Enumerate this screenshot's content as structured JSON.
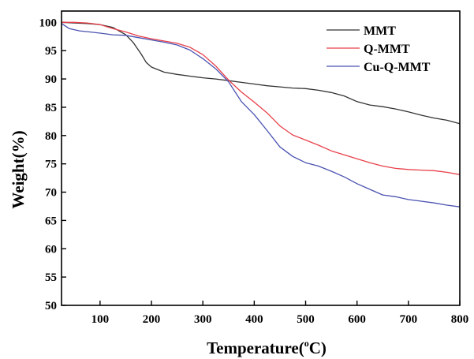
{
  "chart_data": {
    "type": "line",
    "title": "",
    "xlabel": "Temperature(",
    "xlabel_sup": "o",
    "xlabel_unit": "C)",
    "ylabel": "Weight(%)",
    "xlim": [
      25,
      800
    ],
    "ylim": [
      50,
      102
    ],
    "xticks": [
      100,
      200,
      300,
      400,
      500,
      600,
      700,
      800
    ],
    "yticks": [
      50,
      55,
      60,
      65,
      70,
      75,
      80,
      85,
      90,
      95,
      100
    ],
    "grid": false,
    "legend_position": "top-right",
    "series": [
      {
        "name": "MMT",
        "color": "#333333",
        "x": [
          25,
          50,
          75,
          100,
          125,
          150,
          165,
          180,
          190,
          200,
          225,
          250,
          275,
          300,
          325,
          350,
          375,
          400,
          425,
          450,
          475,
          500,
          525,
          550,
          575,
          600,
          625,
          650,
          675,
          700,
          725,
          750,
          775,
          800
        ],
        "y": [
          100,
          99.9,
          99.8,
          99.6,
          99.1,
          97.8,
          96.4,
          94.4,
          92.9,
          92.1,
          91.2,
          90.8,
          90.5,
          90.2,
          90.0,
          89.7,
          89.4,
          89.1,
          88.8,
          88.6,
          88.4,
          88.3,
          88.0,
          87.6,
          87.0,
          86.0,
          85.4,
          85.1,
          84.7,
          84.2,
          83.6,
          83.1,
          82.7,
          82.1
        ]
      },
      {
        "name": "Q-MMT",
        "color": "#e8404a",
        "x": [
          25,
          50,
          75,
          100,
          125,
          150,
          175,
          200,
          225,
          250,
          275,
          300,
          325,
          350,
          375,
          400,
          425,
          450,
          475,
          500,
          525,
          550,
          575,
          600,
          625,
          650,
          675,
          700,
          725,
          750,
          775,
          800
        ],
        "y": [
          100,
          100,
          99.9,
          99.6,
          98.9,
          98.3,
          97.6,
          97.1,
          96.7,
          96.3,
          95.6,
          94.3,
          92.3,
          89.8,
          87.7,
          85.9,
          84.0,
          81.7,
          80.1,
          79.2,
          78.3,
          77.3,
          76.6,
          75.9,
          75.2,
          74.6,
          74.2,
          74.0,
          73.9,
          73.8,
          73.5,
          73.1
        ]
      },
      {
        "name": "Cu-Q-MMT",
        "color": "#4a52b0",
        "x": [
          25,
          40,
          60,
          80,
          100,
          125,
          150,
          175,
          200,
          225,
          250,
          275,
          300,
          325,
          350,
          375,
          400,
          425,
          450,
          475,
          500,
          525,
          550,
          575,
          600,
          625,
          650,
          675,
          700,
          725,
          750,
          775,
          800
        ],
        "y": [
          99.8,
          98.9,
          98.5,
          98.3,
          98.1,
          97.8,
          97.7,
          97.3,
          96.9,
          96.5,
          96.0,
          95.1,
          93.6,
          91.8,
          89.5,
          86.0,
          83.7,
          80.9,
          78.0,
          76.3,
          75.2,
          74.6,
          73.7,
          72.7,
          71.5,
          70.5,
          69.5,
          69.2,
          68.7,
          68.4,
          68.1,
          67.7,
          67.4
        ]
      }
    ]
  }
}
